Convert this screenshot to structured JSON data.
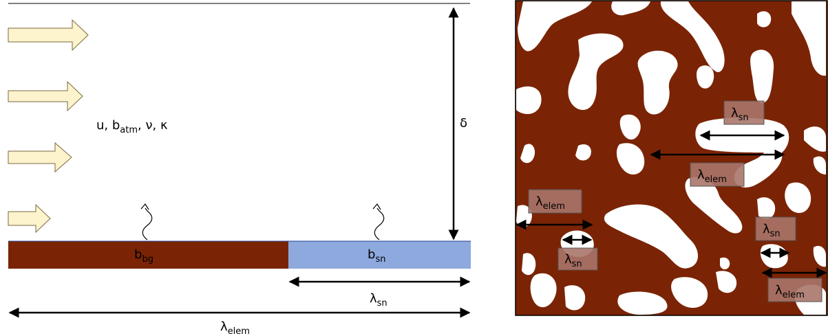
{
  "left_diagram": {
    "params": {
      "u": "u, b",
      "atm": "atm",
      "rest": ", ν, κ"
    },
    "delta": "δ",
    "surface_bg": {
      "base": "b",
      "sub": "bg",
      "color": "#7a2405"
    },
    "surface_sn": {
      "base": "b",
      "sub": "sn",
      "color": "#8ea9dd"
    },
    "lambda_sn": {
      "base": "λ",
      "sub": "sn"
    },
    "lambda_elem": {
      "base": "λ",
      "sub": "elem"
    },
    "wind_arrow_color": "#fdf3cc"
  },
  "right_map": {
    "background_color": "#7a2405",
    "patch_color": "#ffffff",
    "labels": [
      {
        "id": "lsn1",
        "base": "λ",
        "sub": "sn"
      },
      {
        "id": "lelem1",
        "base": "λ",
        "sub": "elem"
      },
      {
        "id": "lelem2",
        "base": "λ",
        "sub": "elem"
      },
      {
        "id": "lsn2",
        "base": "λ",
        "sub": "sn"
      },
      {
        "id": "lsn3",
        "base": "λ",
        "sub": "sn"
      },
      {
        "id": "lelem3",
        "base": "λ",
        "sub": "elem"
      }
    ]
  }
}
